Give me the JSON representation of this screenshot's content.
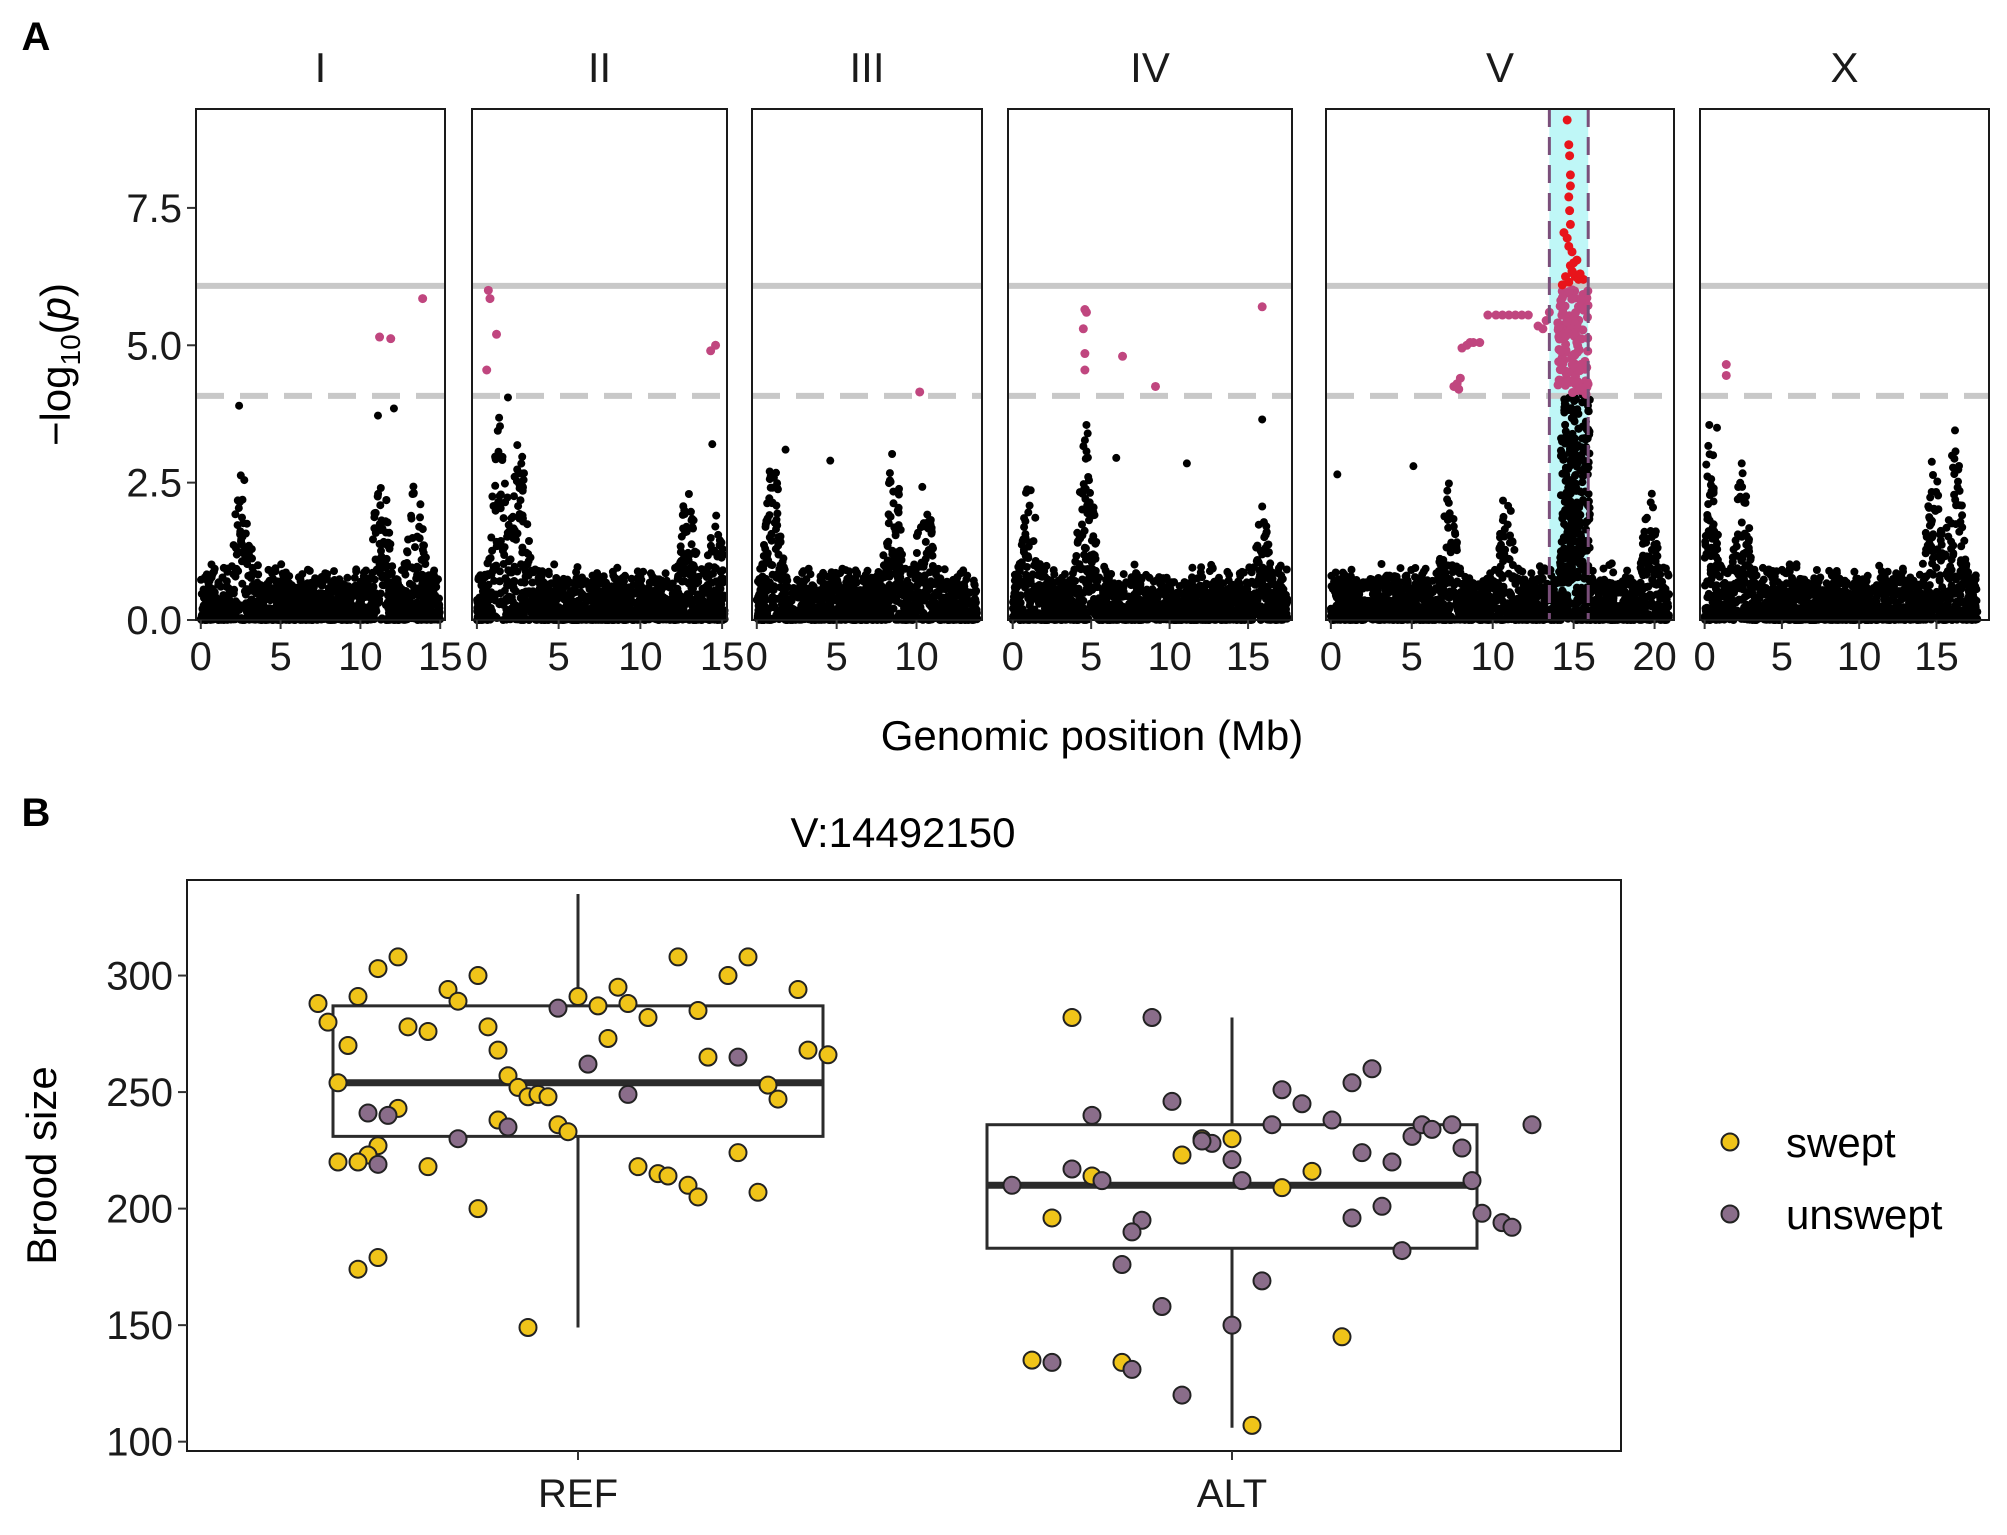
{
  "figure": {
    "panel_labels": [
      "A",
      "B"
    ]
  },
  "colors": {
    "points": "#000000",
    "suggestive": "#c0467f",
    "significant": "#e8141b",
    "interval_fill": "#bff7f7",
    "interval_line": "#7a4f7a",
    "threshold_line": "#c8c8c8",
    "swept": "#f0c419",
    "unswept": "#8a6d8a",
    "box": "#2b2b2b"
  },
  "chart_data": [
    {
      "type": "scatter",
      "panel": "A",
      "subtype": "manhattan",
      "xlabel": "Genomic position (Mb)",
      "ylabel": "-log10(p)",
      "ylim": [
        0,
        9.3
      ],
      "yticks": [
        "0.0",
        "2.5",
        "5.0",
        "7.5"
      ],
      "thresholds": {
        "bonferroni": 6.08,
        "eigen": 4.08
      },
      "grid": false,
      "facets": [
        {
          "label": "I",
          "xlim": [
            -0.3,
            15.3
          ],
          "xticks": [
            0,
            5,
            10,
            15
          ],
          "xtick_labels": [
            "0",
            "5",
            "10",
            "15"
          ],
          "length_mb": 15.0,
          "peaks": [
            [
              2.6,
              3.05
            ],
            [
              11.3,
              2.9
            ],
            [
              13.5,
              2.7
            ]
          ],
          "highlight_points": [
            [
              11.2,
              5.15
            ],
            [
              11.9,
              5.12
            ],
            [
              13.9,
              5.85
            ]
          ],
          "black_outliers": [
            [
              2.4,
              3.9
            ],
            [
              11.1,
              3.72
            ],
            [
              12.1,
              3.85
            ]
          ]
        },
        {
          "label": "II",
          "xlim": [
            -0.3,
            15.3
          ],
          "xticks": [
            0,
            5,
            10,
            15
          ],
          "xtick_labels": [
            "0",
            "5",
            "10",
            "15"
          ],
          "length_mb": 15.2,
          "peaks": [
            [
              1.4,
              3.7
            ],
            [
              2.6,
              3.3
            ],
            [
              12.9,
              2.5
            ],
            [
              14.6,
              2.0
            ]
          ],
          "highlight_points": [
            [
              0.7,
              6.0
            ],
            [
              0.8,
              5.85
            ],
            [
              1.2,
              5.2
            ],
            [
              0.6,
              4.55
            ],
            [
              14.3,
              4.9
            ],
            [
              14.6,
              5.0
            ]
          ],
          "black_outliers": [
            [
              1.9,
              4.05
            ],
            [
              14.4,
              3.2
            ]
          ]
        },
        {
          "label": "III",
          "xlim": [
            -0.3,
            14.1
          ],
          "xticks": [
            0,
            5,
            10
          ],
          "xtick_labels": [
            "0",
            "5",
            "10"
          ],
          "length_mb": 13.8,
          "peaks": [
            [
              1.0,
              3.0
            ],
            [
              8.6,
              3.3
            ],
            [
              10.5,
              2.6
            ]
          ],
          "highlight_points": [
            [
              10.2,
              4.15
            ]
          ],
          "black_outliers": [
            [
              1.8,
              3.1
            ],
            [
              4.6,
              2.9
            ]
          ]
        },
        {
          "label": "IV",
          "xlim": [
            -0.3,
            17.8
          ],
          "xticks": [
            0,
            5,
            10,
            15
          ],
          "xtick_labels": [
            "0",
            "5",
            "10",
            "15"
          ],
          "length_mb": 17.5,
          "peaks": [
            [
              4.7,
              3.5
            ],
            [
              1.1,
              2.7
            ],
            [
              15.9,
              2.1
            ]
          ],
          "highlight_points": [
            [
              4.6,
              5.65
            ],
            [
              4.7,
              5.6
            ],
            [
              4.5,
              5.3
            ],
            [
              4.6,
              4.85
            ],
            [
              4.6,
              4.55
            ],
            [
              7.0,
              4.8
            ],
            [
              9.1,
              4.25
            ],
            [
              15.9,
              5.7
            ]
          ],
          "black_outliers": [
            [
              4.7,
              3.55
            ],
            [
              15.9,
              3.65
            ],
            [
              11.1,
              2.85
            ],
            [
              6.6,
              2.95
            ]
          ]
        },
        {
          "label": "V",
          "xlim": [
            -0.3,
            21.2
          ],
          "xticks": [
            0,
            5,
            10,
            15,
            20
          ],
          "xtick_labels": [
            "0",
            "5",
            "10",
            "15",
            "20"
          ],
          "length_mb": 20.9,
          "interval_mb": [
            13.5,
            15.9
          ],
          "peaks": [
            [
              7.3,
              2.5
            ],
            [
              10.8,
              2.5
            ],
            [
              14.9,
              3.9
            ],
            [
              19.7,
              2.4
            ]
          ],
          "black_outliers": [
            [
              0.4,
              2.65
            ],
            [
              5.1,
              2.8
            ]
          ]
        },
        {
          "label": "X",
          "xlim": [
            -0.3,
            18.4
          ],
          "xticks": [
            0,
            5,
            10,
            15
          ],
          "xtick_labels": [
            "0",
            "5",
            "10",
            "15"
          ],
          "length_mb": 17.7,
          "peaks": [
            [
              0.3,
              3.5
            ],
            [
              2.4,
              2.8
            ],
            [
              14.8,
              3.0
            ],
            [
              16.2,
              3.4
            ]
          ],
          "highlight_points": [
            [
              1.4,
              4.65
            ],
            [
              1.4,
              4.45
            ]
          ],
          "black_outliers": [
            [
              0.3,
              3.55
            ],
            [
              0.8,
              3.5
            ],
            [
              2.4,
              2.85
            ],
            [
              16.2,
              3.45
            ]
          ]
        }
      ]
    },
    {
      "type": "box",
      "panel": "B",
      "title": "V:14492150",
      "xlabel": "",
      "ylabel": "Brood size",
      "categories": [
        "REF",
        "ALT"
      ],
      "ylim": [
        96,
        341
      ],
      "yticks": [
        100,
        150,
        200,
        250,
        300
      ],
      "legend": {
        "position": "right",
        "entries": [
          "swept",
          "unswept"
        ]
      },
      "boxes": [
        {
          "category": "REF",
          "min": 149,
          "q1": 231,
          "median": 254,
          "q3": 287,
          "max": 335
        },
        {
          "category": "ALT",
          "min": 106,
          "q1": 183,
          "median": 210,
          "q3": 236,
          "max": 282
        }
      ],
      "points": {
        "REF": {
          "swept": [
            [
              -0.26,
              288
            ],
            [
              -0.25,
              280
            ],
            [
              -0.23,
              270
            ],
            [
              -0.24,
              254
            ],
            [
              -0.22,
              291
            ],
            [
              -0.2,
              303
            ],
            [
              -0.18,
              308
            ],
            [
              -0.17,
              278
            ],
            [
              -0.15,
              276
            ],
            [
              -0.13,
              294
            ],
            [
              -0.12,
              289
            ],
            [
              -0.1,
              300
            ],
            [
              -0.09,
              278
            ],
            [
              -0.08,
              268
            ],
            [
              -0.07,
              257
            ],
            [
              -0.06,
              252
            ],
            [
              -0.05,
              248
            ],
            [
              -0.04,
              249
            ],
            [
              -0.03,
              248
            ],
            [
              -0.02,
              236
            ],
            [
              -0.01,
              233
            ],
            [
              0.0,
              291
            ],
            [
              0.02,
              287
            ],
            [
              0.03,
              273
            ],
            [
              0.04,
              295
            ],
            [
              0.05,
              288
            ],
            [
              0.07,
              282
            ],
            [
              0.1,
              308
            ],
            [
              0.12,
              285
            ],
            [
              0.13,
              265
            ],
            [
              0.15,
              300
            ],
            [
              0.17,
              308
            ],
            [
              0.19,
              253
            ],
            [
              0.2,
              247
            ],
            [
              0.22,
              294
            ],
            [
              0.23,
              268
            ],
            [
              0.25,
              266
            ],
            [
              -0.18,
              243
            ],
            [
              -0.2,
              227
            ],
            [
              -0.21,
              223
            ],
            [
              -0.22,
              220
            ],
            [
              -0.24,
              220
            ],
            [
              -0.15,
              218
            ],
            [
              -0.1,
              200
            ],
            [
              -0.08,
              238
            ],
            [
              0.06,
              218
            ],
            [
              0.08,
              215
            ],
            [
              0.09,
              214
            ],
            [
              0.11,
              210
            ],
            [
              0.12,
              205
            ],
            [
              0.16,
              224
            ],
            [
              0.18,
              207
            ],
            [
              -0.2,
              179
            ],
            [
              -0.22,
              174
            ],
            [
              -0.05,
              149
            ]
          ],
          "unswept": [
            [
              -0.21,
              241
            ],
            [
              -0.19,
              240
            ],
            [
              -0.12,
              230
            ],
            [
              -0.07,
              235
            ],
            [
              -0.02,
              286
            ],
            [
              0.01,
              262
            ],
            [
              0.05,
              249
            ],
            [
              -0.2,
              219
            ],
            [
              0.16,
              265
            ]
          ]
        },
        "ALT": {
          "swept": [
            [
              -0.16,
              282
            ],
            [
              -0.18,
              196
            ],
            [
              -0.2,
              135
            ],
            [
              -0.11,
              134
            ],
            [
              -0.14,
              214
            ],
            [
              -0.03,
              230
            ],
            [
              0.0,
              230
            ],
            [
              0.05,
              209
            ],
            [
              0.08,
              216
            ],
            [
              0.11,
              145
            ],
            [
              0.02,
              107
            ],
            [
              -0.05,
              223
            ]
          ],
          "unswept": [
            [
              -0.08,
              282
            ],
            [
              -0.06,
              246
            ],
            [
              -0.14,
              240
            ],
            [
              -0.16,
              217
            ],
            [
              -0.13,
              212
            ],
            [
              -0.22,
              210
            ],
            [
              -0.09,
              195
            ],
            [
              -0.1,
              190
            ],
            [
              -0.11,
              176
            ],
            [
              -0.02,
              228
            ],
            [
              0.0,
              221
            ],
            [
              0.01,
              212
            ],
            [
              0.04,
              236
            ],
            [
              0.05,
              251
            ],
            [
              0.07,
              245
            ],
            [
              0.1,
              238
            ],
            [
              0.12,
              254
            ],
            [
              0.14,
              260
            ],
            [
              0.13,
              224
            ],
            [
              0.16,
              220
            ],
            [
              0.18,
              231
            ],
            [
              0.19,
              236
            ],
            [
              0.2,
              234
            ],
            [
              0.22,
              236
            ],
            [
              0.23,
              226
            ],
            [
              0.24,
              212
            ],
            [
              0.25,
              198
            ],
            [
              0.27,
              194
            ],
            [
              0.28,
              192
            ],
            [
              0.3,
              236
            ],
            [
              0.15,
              201
            ],
            [
              0.17,
              182
            ],
            [
              0.03,
              169
            ],
            [
              -0.07,
              158
            ],
            [
              0.0,
              150
            ],
            [
              -0.18,
              134
            ],
            [
              -0.1,
              131
            ],
            [
              -0.05,
              120
            ],
            [
              0.12,
              196
            ],
            [
              -0.03,
              229
            ]
          ]
        }
      }
    }
  ]
}
